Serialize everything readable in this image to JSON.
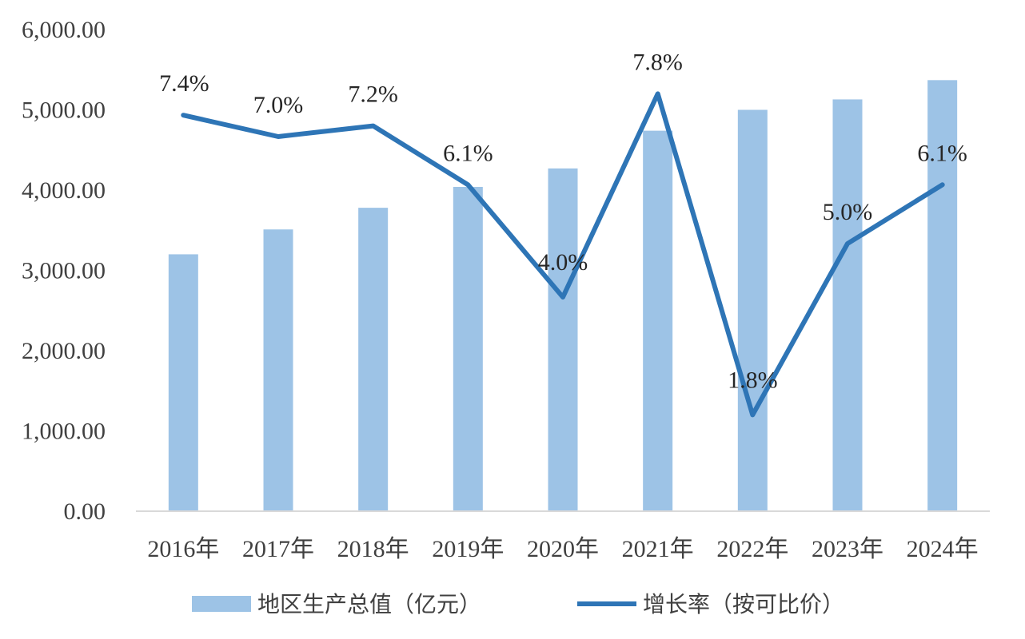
{
  "chart_data": {
    "type": "bar",
    "categories": [
      "2016年",
      "2017年",
      "2018年",
      "2019年",
      "2020年",
      "2021年",
      "2022年",
      "2023年",
      "2024年"
    ],
    "title": "",
    "xlabel": "",
    "ylabel": "",
    "ylim": [
      0,
      6000
    ],
    "yticks": [
      "0.00",
      "1,000.00",
      "2,000.00",
      "3,000.00",
      "4,000.00",
      "5,000.00",
      "6,000.00"
    ],
    "grid": false,
    "legend_position": "bottom",
    "series": [
      {
        "name": "地区生产总值（亿元）",
        "type": "bar",
        "color": "#9DC3E6",
        "values": [
          3200,
          3510,
          3780,
          4040,
          4270,
          4740,
          5000,
          5130,
          5370
        ]
      },
      {
        "name": "增长率（按可比价）",
        "type": "line",
        "color": "#2E75B6",
        "values": [
          7.4,
          7.0,
          7.2,
          6.1,
          4.0,
          7.8,
          1.8,
          5.0,
          6.1
        ],
        "labels": [
          "7.4%",
          "7.0%",
          "7.2%",
          "6.1%",
          "4.0%",
          "7.8%",
          "1.8%",
          "5.0%",
          "6.1%"
        ],
        "secondary_axis_range": [
          0,
          9
        ]
      }
    ]
  }
}
